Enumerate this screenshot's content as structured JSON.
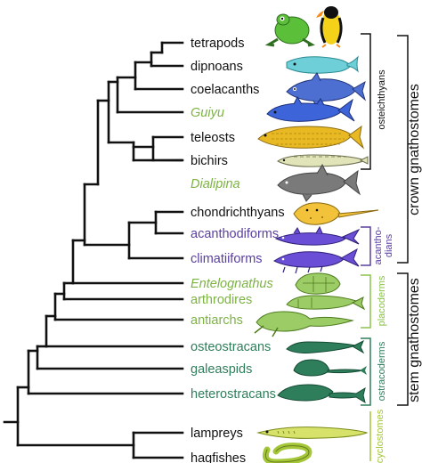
{
  "colors": {
    "black": "#111111",
    "extinct_green": "#7cb342",
    "acanthodian_purple": "#5a3fa0",
    "placoderm_green": "#8bc34a",
    "ostracoderm_green": "#2e7d5b",
    "cyclostome_green": "#a4c639"
  },
  "taxa": [
    {
      "label": "tetrapods",
      "icon": "frog-and-penguin-icon"
    },
    {
      "label": "dipnoans",
      "icon": "lungfish-icon"
    },
    {
      "label": "coelacanths",
      "icon": "coelacanth-icon"
    },
    {
      "label": "Guiyu",
      "icon": "guiyu-fish-icon"
    },
    {
      "label": "teleosts",
      "icon": "arowana-icon"
    },
    {
      "label": "bichirs",
      "icon": "bichir-icon"
    },
    {
      "label": "Dialipina",
      "icon": "dialipina-fish-icon"
    },
    {
      "label": "chondrichthyans",
      "icon": "ray-icon"
    },
    {
      "label": "acanthodiforms",
      "icon": "acanthodiform-fish-icon"
    },
    {
      "label": "climatiiforms",
      "icon": "climatiiform-fish-icon"
    },
    {
      "label": "Entelognathus",
      "icon": "entelognathus-icon"
    },
    {
      "label": "arthrodires",
      "icon": "arthrodire-icon"
    },
    {
      "label": "antiarchs",
      "icon": "antiarch-icon"
    },
    {
      "label": "osteostracans",
      "icon": "osteostracan-icon"
    },
    {
      "label": "galeaspids",
      "icon": "galeaspid-icon"
    },
    {
      "label": "heterostracans",
      "icon": "heterostracan-icon"
    },
    {
      "label": "lampreys",
      "icon": "lamprey-icon"
    },
    {
      "label": "hagfishes",
      "icon": "hagfish-icon"
    }
  ],
  "brackets": {
    "osteichthyans": "osteichthyans",
    "acanthodians_1": "acantho-",
    "acanthodians_2": "dians",
    "placoderms": "placoderms",
    "ostracoderms": "ostracoderms",
    "cyclostomes": "cyclostomes"
  },
  "groups": {
    "crown": "crown gnathostomes",
    "stem": "stem gnathostomes"
  }
}
